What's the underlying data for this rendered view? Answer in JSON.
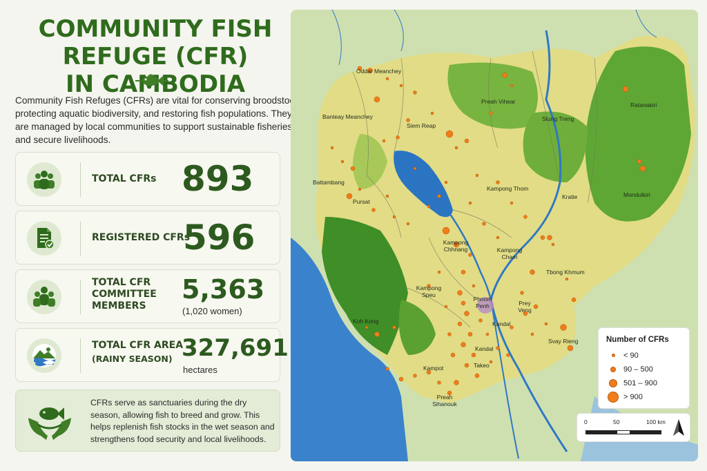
{
  "title": "COMMUNITY FISH REFUGE (CFR) IN CAMBODIA",
  "title_line1": "COMMUNITY FISH REFUGE (CFR)",
  "title_line2": "IN CAMBODIA",
  "intro": "Community Fish Refuges (CFRs) are vital for conserving broodstock, protecting aquatic biodiversity, and restoring fish populations. They are managed by local communities to support sustainable fisheries and secure livelihoods.",
  "stats": {
    "total_cfrs": {
      "label": "TOTAL CFRs",
      "value": "893",
      "icon": "people-group-icon"
    },
    "registered": {
      "label": "REGISTERED CFRs",
      "value": "596",
      "icon": "document-check-icon"
    },
    "members": {
      "label_1": "TOTAL CFR",
      "label_2": "COMMITTEE",
      "label_3": "MEMBERS",
      "value": "5,363",
      "sub": "(1,020 women)",
      "icon": "committee-icon"
    },
    "area": {
      "label_1": "TOTAL CFR AREA",
      "label_2": "(RAINY SEASON)",
      "value": "327,691",
      "sub": "hectares",
      "icon": "landscape-water-icon"
    }
  },
  "note": "CFRs serve as sanctuaries during the dry season, allowing fish to breed and grow. This helps replenish fish stocks in the wet season and strengthens food security and local livelihoods.",
  "provinces": [
    {
      "name": "Oddar Meanchey"
    },
    {
      "name": "Preah Vihear"
    },
    {
      "name": "Stung Treng"
    },
    {
      "name": "Ratanakiri"
    },
    {
      "name": "Banteay Meanchey"
    },
    {
      "name": "Siem Reap"
    },
    {
      "name": "Battambang"
    },
    {
      "name": "Kampong Thom"
    },
    {
      "name": "Pursat"
    },
    {
      "name": "Kratie"
    },
    {
      "name": "Mondulkiri"
    },
    {
      "name": "Kampong Chhnang"
    },
    {
      "name": "Kampong Cham"
    },
    {
      "name": "Tbong Khmum"
    },
    {
      "name": "Kampong Speu"
    },
    {
      "name": "Phnom Penh"
    },
    {
      "name": "Prey Veng"
    },
    {
      "name": "Koh Kong"
    },
    {
      "name": "Kandal"
    },
    {
      "name": "Svay Rieng"
    },
    {
      "name": "Takeo"
    },
    {
      "name": "Kampot"
    },
    {
      "name": "Preah Sihanouk"
    },
    {
      "name": "Kandal"
    }
  ],
  "legend": {
    "title": "Number of CFRs",
    "items": [
      "< 90",
      "90 – 500",
      "501 – 900",
      "> 900"
    ]
  },
  "scale": {
    "t0": "0",
    "t1": "50",
    "t2": "100 km"
  },
  "colors": {
    "title_green": "#2f6b1d",
    "dot_orange": "#ef7d1a",
    "water_blue": "#2f78c4",
    "forest_green": "#4e9a2c",
    "farmland_yellow": "#e3df8a"
  }
}
